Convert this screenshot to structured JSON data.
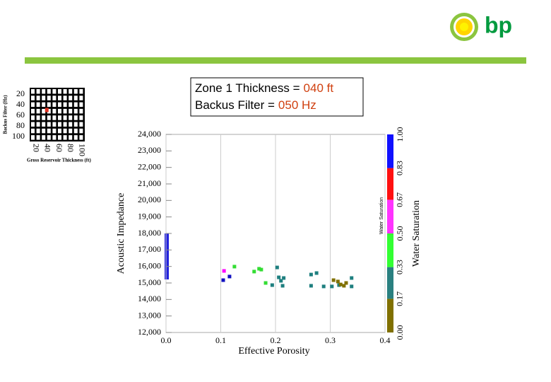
{
  "logo": "bp",
  "thumbnail": {
    "ylabel": "Backus Filter (Hz)",
    "xlabel": "Gross Reservoir Thickness (ft)",
    "yticks": [
      20,
      40,
      60,
      80,
      100
    ],
    "xticks": [
      20,
      40,
      60,
      80,
      100
    ],
    "marker": {
      "x": 40,
      "y": 50
    },
    "marker_color": "#e03020"
  },
  "annotation": {
    "lines": [
      {
        "label": "Zone 1 Thickness =",
        "value": "040 ft"
      },
      {
        "label": "Backus Filter =",
        "value": "050 Hz"
      }
    ],
    "value_color": "#d04010"
  },
  "chart_data": {
    "type": "scatter",
    "xlabel": "Effective Porosity",
    "ylabel": "Acoustic Impedance",
    "xlim": [
      0,
      0.4
    ],
    "ylim": [
      12000,
      24000
    ],
    "xticks": [
      {
        "value": 0,
        "label": "0.0"
      },
      0.1,
      0.2,
      0.3,
      0.4
    ],
    "yticks": [
      {
        "value": 12000,
        "label": "12,000"
      },
      {
        "value": 13000,
        "label": "13,000"
      },
      {
        "value": 14000,
        "label": "14,000"
      },
      {
        "value": 15000,
        "label": "15,000"
      },
      {
        "value": 16000,
        "label": "16,000"
      },
      {
        "value": 17000,
        "label": "17,000"
      },
      {
        "value": 18000,
        "label": "18,000"
      },
      {
        "value": 19000,
        "label": "19,000"
      },
      {
        "value": 20000,
        "label": "20,000"
      },
      {
        "value": 21000,
        "label": "21,000"
      },
      {
        "value": 22000,
        "label": "22,000"
      },
      {
        "value": 23000,
        "label": "23,000"
      },
      {
        "value": 24000,
        "label": "24,000"
      }
    ],
    "grid": "x",
    "x": [
      0.1045,
      0.116,
      0.106,
      0.125,
      0.161,
      0.17,
      0.174,
      0.182,
      0.194,
      0.203,
      0.206,
      0.21,
      0.213,
      0.215,
      0.265,
      0.275,
      0.265,
      0.288,
      0.303,
      0.316,
      0.339,
      0.339,
      0.306,
      0.314,
      0.319,
      0.325,
      0.329
    ],
    "values": [
      15170,
      15390,
      15730,
      15990,
      15690,
      15860,
      15810,
      15000,
      14870,
      15940,
      15340,
      15130,
      14830,
      15300,
      15510,
      15600,
      14830,
      14790,
      14790,
      14870,
      15300,
      14790,
      15170,
      15090,
      14910,
      14830,
      15000
    ],
    "colors": [
      "#1010c0",
      "#1010c0",
      "#ff00ff",
      "#33dd33",
      "#33dd33",
      "#33dd33",
      "#33dd33",
      "#33dd33",
      "#1e7f7f",
      "#1e7f7f",
      "#1e7f7f",
      "#1e7f7f",
      "#1e7f7f",
      "#1e7f7f",
      "#1e7f7f",
      "#1e7f7f",
      "#1e7f7f",
      "#1e7f7f",
      "#1e7f7f",
      "#1e7f7f",
      "#1e7f7f",
      "#1e7f7f",
      "#807000",
      "#807000",
      "#807000",
      "#807000",
      "#807000"
    ],
    "colorbar": {
      "title": "Water Saturation",
      "ticks": [
        {
          "value": 0,
          "label": "0.00"
        },
        0.17,
        0.33,
        {
          "value": 0.5,
          "label": "0.50"
        },
        0.67,
        0.83,
        {
          "value": 1,
          "label": "1.00"
        }
      ],
      "colors": [
        "#807000",
        "#2a8080",
        "#33ff33",
        "#ff33ff",
        "#ff1010",
        "#1010ff"
      ]
    }
  }
}
